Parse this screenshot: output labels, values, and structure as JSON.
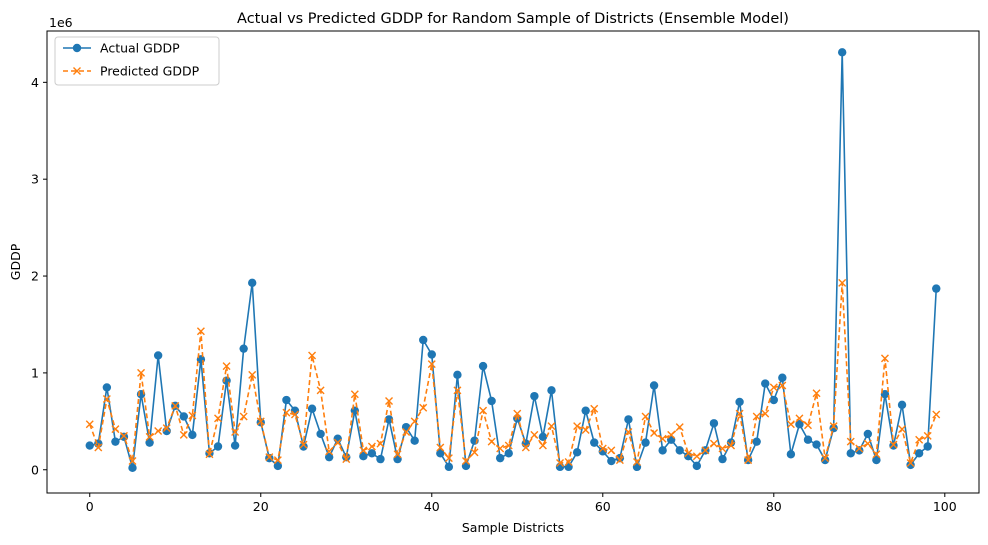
{
  "chart_data": {
    "type": "line",
    "title": "Actual vs Predicted GDDP for Random Sample of Districts (Ensemble Model)",
    "xlabel": "Sample Districts",
    "ylabel": "GDDP",
    "offset_label": "1e6",
    "xlim": [
      -5,
      104
    ],
    "ylim": [
      -0.24,
      4.53
    ],
    "xticks": [
      0,
      20,
      40,
      60,
      80,
      100
    ],
    "yticks": [
      0,
      1,
      2,
      3,
      4
    ],
    "grid": false,
    "legend_position": "upper-left",
    "series": [
      {
        "name": "Actual GDDP",
        "color": "#1f77b4",
        "marker": "circle",
        "linestyle": "solid",
        "values": [
          0.25,
          0.27,
          0.85,
          0.29,
          0.34,
          0.02,
          0.78,
          0.28,
          1.18,
          0.4,
          0.66,
          0.55,
          0.36,
          1.14,
          0.17,
          0.24,
          0.92,
          0.25,
          1.25,
          1.93,
          0.49,
          0.12,
          0.04,
          0.72,
          0.61,
          0.24,
          0.63,
          0.37,
          0.13,
          0.32,
          0.13,
          0.61,
          0.14,
          0.17,
          0.11,
          0.52,
          0.11,
          0.44,
          0.3,
          1.34,
          1.19,
          0.17,
          0.03,
          0.98,
          0.04,
          0.3,
          1.07,
          0.71,
          0.12,
          0.17,
          0.53,
          0.27,
          0.76,
          0.34,
          0.82,
          0.03,
          0.03,
          0.18,
          0.61,
          0.28,
          0.19,
          0.09,
          0.12,
          0.52,
          0.03,
          0.28,
          0.87,
          0.2,
          0.31,
          0.2,
          0.14,
          0.04,
          0.2,
          0.48,
          0.11,
          0.28,
          0.7,
          0.1,
          0.29,
          0.89,
          0.72,
          0.95,
          0.16,
          0.47,
          0.31,
          0.26,
          0.1,
          0.43,
          4.31,
          0.17,
          0.2,
          0.37,
          0.1,
          0.78,
          0.25,
          0.67,
          0.05,
          0.17,
          0.24,
          1.87
        ]
      },
      {
        "name": "Predicted GDDP",
        "color": "#ff7f0e",
        "marker": "x",
        "linestyle": "dashed",
        "values": [
          0.47,
          0.23,
          0.73,
          0.42,
          0.35,
          0.09,
          1.0,
          0.34,
          0.4,
          0.43,
          0.66,
          0.36,
          0.56,
          1.43,
          0.16,
          0.53,
          1.07,
          0.39,
          0.55,
          0.98,
          0.5,
          0.13,
          0.1,
          0.59,
          0.57,
          0.26,
          1.18,
          0.82,
          0.19,
          0.28,
          0.11,
          0.78,
          0.2,
          0.24,
          0.27,
          0.71,
          0.16,
          0.39,
          0.5,
          0.64,
          1.09,
          0.23,
          0.12,
          0.82,
          0.09,
          0.18,
          0.61,
          0.29,
          0.22,
          0.25,
          0.58,
          0.23,
          0.36,
          0.25,
          0.45,
          0.07,
          0.08,
          0.45,
          0.41,
          0.63,
          0.22,
          0.2,
          0.1,
          0.39,
          0.08,
          0.55,
          0.38,
          0.32,
          0.36,
          0.44,
          0.17,
          0.14,
          0.2,
          0.27,
          0.22,
          0.25,
          0.58,
          0.1,
          0.55,
          0.58,
          0.85,
          0.87,
          0.47,
          0.53,
          0.46,
          0.79,
          0.12,
          0.45,
          1.93,
          0.29,
          0.22,
          0.27,
          0.16,
          1.15,
          0.26,
          0.42,
          0.07,
          0.31,
          0.35,
          0.57
        ]
      }
    ]
  }
}
